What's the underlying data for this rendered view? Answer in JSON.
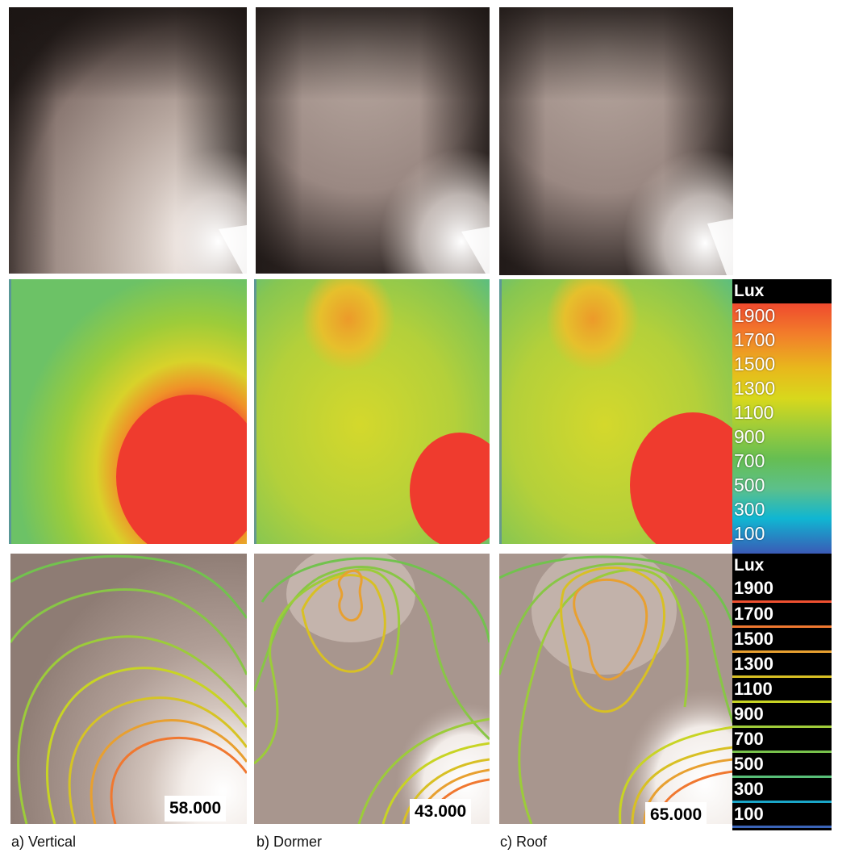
{
  "render_rows": [
    "photo-rendering",
    "false-color-illuminance",
    "isolux-contours"
  ],
  "captions": [
    "a) Vertical",
    "b) Dormer",
    "c) Roof"
  ],
  "values": [
    "58.000",
    "43.000",
    "65.000"
  ],
  "color_scale": {
    "title": "Lux",
    "labels": [
      "1900",
      "1700",
      "1500",
      "1300",
      "1100",
      "900",
      "700",
      "500",
      "300",
      "100"
    ]
  },
  "contour_scale": {
    "title": "Lux",
    "labels": [
      "1900",
      "1700",
      "1500",
      "1300",
      "1100",
      "900",
      "700",
      "500",
      "300",
      "100"
    ],
    "line_colors": [
      "#f05030",
      "#f07830",
      "#e8a030",
      "#d8c024",
      "#c8d424",
      "#a0cc3a",
      "#78c24c",
      "#58be78",
      "#1aa6c8",
      "#3a64b8"
    ]
  },
  "colors": {
    "red": "#ef3b2e",
    "orange": "#f08c2a",
    "yellow": "#dcd228",
    "green": "#86c84a",
    "teal": "#5cc090",
    "background_warm": "#a8958c"
  }
}
